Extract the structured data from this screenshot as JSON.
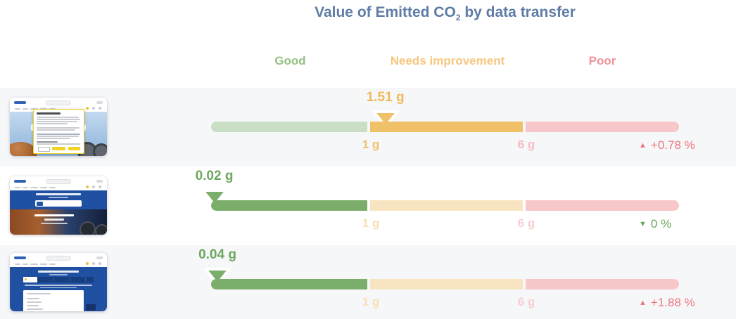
{
  "header": {
    "title_prefix": "Value of Emitted CO",
    "title_sub": "2",
    "title_suffix": " by data transfer"
  },
  "legend": {
    "good": "Good",
    "needs_improvement": "Needs improvement",
    "poor": "Poor"
  },
  "scale": {
    "tick_1": "1 g",
    "tick_6": "6 g"
  },
  "rows": [
    {
      "value": "1.51 g",
      "status": "needs-improvement",
      "change": "+0.78 %",
      "trend_arrow": "▲",
      "trend": "up",
      "change_color": "#ec757b"
    },
    {
      "value": "0.02 g",
      "status": "good",
      "change": "0 %",
      "trend_arrow": "▼",
      "trend": "down",
      "change_color": "#68a65a"
    },
    {
      "value": "0.04 g",
      "status": "good",
      "change": "+1.88 %",
      "trend_arrow": "▲",
      "trend": "up",
      "change_color": "#ec757b"
    }
  ],
  "colors": {
    "title": "#5e7ca6",
    "good": "#7cae6b",
    "needs_improvement": "#f0c168",
    "poor": "#f8c7ca",
    "good_faded": "#c9dfc5",
    "needs_faded": "#f9e4c1",
    "pct_red": "#ec757b",
    "pct_green": "#68a65a",
    "row_stripe": "#f6f7f9"
  },
  "chart_data": {
    "type": "bullet-gauge",
    "title": "Value of Emitted CO2 by data transfer",
    "bands": [
      {
        "label": "Good",
        "range_g": [
          0,
          1
        ],
        "color": "#7cae6b"
      },
      {
        "label": "Needs improvement",
        "range_g": [
          1,
          6
        ],
        "color": "#f0c168"
      },
      {
        "label": "Poor",
        "range_g": [
          6,
          null
        ],
        "color": "#f8c7ca"
      }
    ],
    "tick_labels": [
      "1 g",
      "6 g"
    ],
    "rows": [
      {
        "page": "homepage with cookie consent dialog",
        "value_g": 1.51,
        "display": "1.51 g",
        "band": "Needs improvement",
        "change_display": "+0.78 %",
        "trend": "up"
      },
      {
        "page": "homepage",
        "value_g": 0.02,
        "display": "0.02 g",
        "band": "Good",
        "change_display": "0 %",
        "trend": "down"
      },
      {
        "page": "inner content page",
        "value_g": 0.04,
        "display": "0.04 g",
        "band": "Good",
        "change_display": "+1.88 %",
        "trend": "up"
      }
    ]
  }
}
